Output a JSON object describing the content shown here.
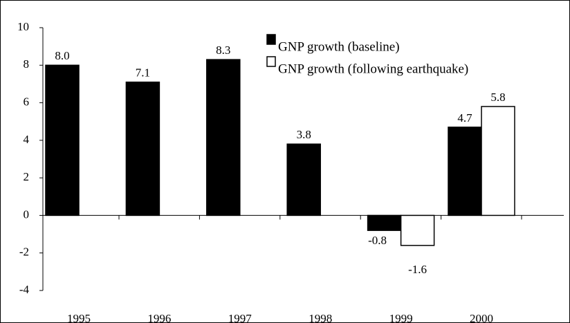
{
  "chart_data": {
    "type": "bar",
    "categories": [
      "1995",
      "1996",
      "1997",
      "1998",
      "1999",
      "2000"
    ],
    "series": [
      {
        "name": "GNP growth (baseline)",
        "color": "#000000",
        "values": [
          8.0,
          7.1,
          8.3,
          3.8,
          -0.8,
          4.7
        ],
        "value_labels": [
          "8.0",
          "7.1",
          "8.3",
          "3.8",
          "-0.8",
          "4.7"
        ]
      },
      {
        "name": "GNP growth (following earthquake)",
        "color": "#ffffff",
        "values": [
          null,
          null,
          null,
          null,
          -1.6,
          5.8
        ],
        "value_labels": [
          null,
          null,
          null,
          null,
          "-1.6",
          "5.8"
        ]
      }
    ],
    "ylim": [
      -4,
      10
    ],
    "yticks": [
      -4,
      -2,
      0,
      2,
      4,
      6,
      8,
      10
    ],
    "grid": false,
    "legend": "top-right"
  }
}
